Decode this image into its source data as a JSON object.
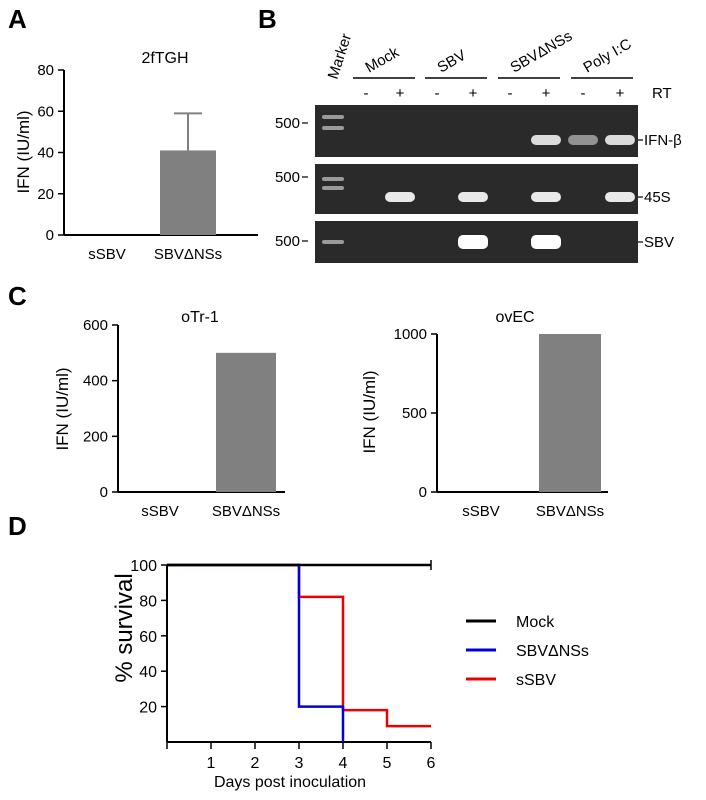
{
  "panels": {
    "a": "A",
    "b": "B",
    "c": "C",
    "d": "D"
  },
  "chart_data": [
    {
      "type": "bar",
      "title": "2fTGH",
      "ylabel": "IFN (IU/ml)",
      "categories": [
        "sSBV",
        "SBVΔNSs"
      ],
      "values": [
        0,
        41
      ],
      "error": [
        0,
        18
      ],
      "ylim": [
        0,
        80
      ],
      "yticks": [
        0,
        20,
        40,
        60,
        80
      ],
      "bar_color": "#808080"
    },
    {
      "type": "bar",
      "title": "oTr-1",
      "ylabel": "IFN (IU/ml)",
      "categories": [
        "sSBV",
        "SBVΔNSs"
      ],
      "values": [
        0,
        500
      ],
      "ylim": [
        0,
        600
      ],
      "yticks": [
        0,
        200,
        400,
        600
      ],
      "bar_color": "#808080"
    },
    {
      "type": "bar",
      "title": "ovEC",
      "ylabel": "IFN (IU/ml)",
      "categories": [
        "sSBV",
        "SBVΔNSs"
      ],
      "values": [
        0,
        1000
      ],
      "ylim": [
        0,
        1000
      ],
      "yticks": [
        0,
        500,
        1000
      ],
      "bar_color": "#808080"
    },
    {
      "type": "line",
      "step": true,
      "xlabel": "Days post inoculation",
      "ylabel": "% survival",
      "xlim": [
        0,
        6
      ],
      "ylim": [
        0,
        100
      ],
      "xticks": [
        1,
        2,
        3,
        4,
        5,
        6
      ],
      "yticks": [
        20,
        40,
        60,
        80,
        100
      ],
      "series": [
        {
          "name": "Mock",
          "color": "#000000",
          "x": [
            0,
            6
          ],
          "y": [
            100,
            100
          ]
        },
        {
          "name": "SBVΔNSs",
          "color": "#0000dd",
          "x": [
            0,
            3,
            3,
            4,
            4
          ],
          "y": [
            100,
            100,
            20,
            20,
            0
          ]
        },
        {
          "name": "sSBV",
          "color": "#ee0000",
          "x": [
            0,
            3,
            3,
            4,
            4,
            5,
            5,
            6
          ],
          "y": [
            100,
            100,
            82,
            82,
            18,
            18,
            9,
            9
          ]
        }
      ]
    }
  ],
  "gel": {
    "marker_label": "Marker",
    "groups": [
      "Mock",
      "SBV",
      "SBVΔNSs",
      "Poly I:C"
    ],
    "rt_signs": [
      "-",
      "+",
      "-",
      "+",
      "-",
      "+",
      "-",
      "+"
    ],
    "rt_label": "RT",
    "marker_size": "500",
    "rows": [
      {
        "label": "IFN-β",
        "bands": [
          0,
          0,
          0,
          0,
          0,
          0.75,
          0.25,
          0.75
        ]
      },
      {
        "label": "45S",
        "bands": [
          0,
          0.85,
          0,
          0.85,
          0,
          0.85,
          0,
          0.85
        ]
      },
      {
        "label": "SBV",
        "bands": [
          0,
          0,
          0,
          1,
          0,
          1,
          0,
          0
        ]
      }
    ]
  }
}
